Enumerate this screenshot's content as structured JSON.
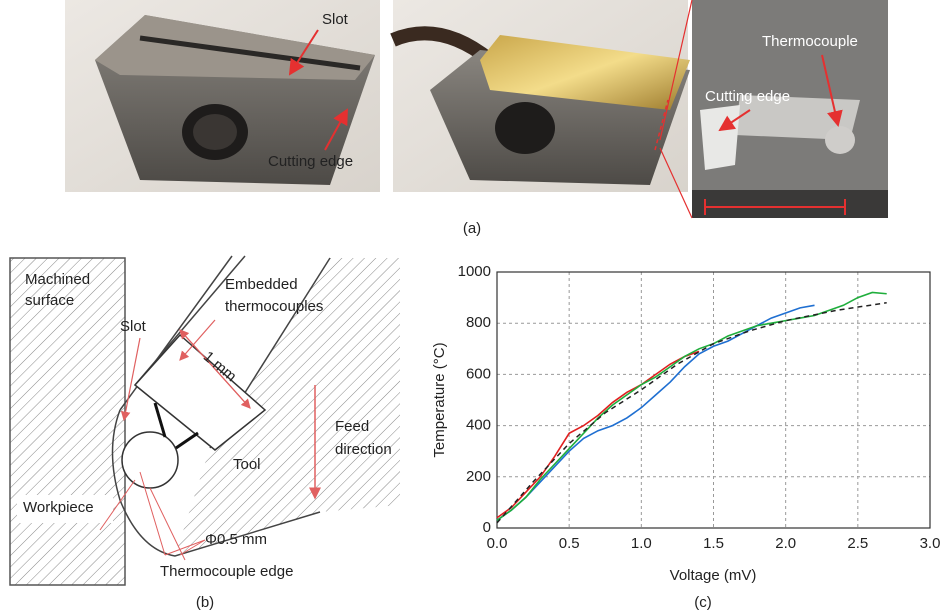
{
  "figure": {
    "panel_labels": [
      "(a)",
      "(b)",
      "(c)"
    ],
    "photo_annotations": [
      "Slot",
      "Cutting edge",
      "Thermocouple",
      "Cutting edge"
    ],
    "diagram_labels": {
      "machined_surface": [
        "Machined",
        "surface"
      ],
      "slot": "Slot",
      "embedded": [
        "Embedded",
        "thermocouples"
      ],
      "length": "1 mm",
      "feed": [
        "Feed",
        "direction"
      ],
      "tool": "Tool",
      "workpiece": "Workpiece",
      "diameter": "Φ0.5 mm",
      "tc_edge": "Thermocouple edge"
    }
  },
  "chart_data": {
    "type": "line",
    "x_label": "Voltage (mV)",
    "y_label": "Temperature (°C)",
    "xlim": [
      0,
      3
    ],
    "ylim": [
      0,
      1000
    ],
    "xticks": [
      {
        "value": 0,
        "label": "0.0"
      },
      {
        "value": 0.5,
        "label": "0.5"
      },
      {
        "value": 1,
        "label": "1.0"
      },
      {
        "value": 1.5,
        "label": "1.5"
      },
      {
        "value": 2,
        "label": "2.0"
      },
      {
        "value": 2.5,
        "label": "2.5"
      },
      {
        "value": 3,
        "label": "3.0"
      }
    ],
    "yticks": [
      0,
      200,
      400,
      600,
      800,
      1000
    ],
    "grid": true,
    "series": [
      {
        "color": "#1f6fd1",
        "dash": false,
        "x": [
          0,
          0.1,
          0.2,
          0.3,
          0.4,
          0.5,
          0.6,
          0.7,
          0.8,
          0.9,
          1.0,
          1.1,
          1.2,
          1.3,
          1.4,
          1.5,
          1.6,
          1.7,
          1.8,
          1.9,
          2.0,
          2.1,
          2.2
        ],
        "values": [
          30,
          70,
          120,
          180,
          240,
          300,
          350,
          380,
          400,
          430,
          470,
          520,
          570,
          630,
          680,
          710,
          730,
          760,
          790,
          820,
          840,
          860,
          870
        ]
      },
      {
        "color": "#e02020",
        "dash": false,
        "x": [
          0,
          0.1,
          0.2,
          0.3,
          0.4,
          0.5,
          0.6,
          0.7,
          0.8,
          0.9,
          1.0,
          1.1,
          1.2,
          1.3,
          1.4
        ],
        "values": [
          40,
          80,
          140,
          200,
          280,
          370,
          400,
          440,
          490,
          530,
          560,
          600,
          640,
          670,
          690
        ]
      },
      {
        "color": "#1fae3c",
        "dash": false,
        "x": [
          0,
          0.1,
          0.2,
          0.3,
          0.4,
          0.5,
          0.6,
          0.7,
          0.8,
          0.9,
          1.0,
          1.1,
          1.2,
          1.3,
          1.4,
          1.5,
          1.6,
          1.7,
          1.8,
          1.9,
          2.0,
          2.1,
          2.2,
          2.3,
          2.4,
          2.5,
          2.6,
          2.7
        ],
        "values": [
          30,
          70,
          120,
          190,
          250,
          310,
          370,
          430,
          480,
          520,
          560,
          590,
          630,
          670,
          700,
          720,
          750,
          770,
          790,
          800,
          810,
          820,
          830,
          850,
          870,
          900,
          920,
          915
        ]
      },
      {
        "color": "#222222",
        "dash": true,
        "x": [
          0,
          0.25,
          0.5,
          0.75,
          1.0,
          1.25,
          1.5,
          1.75,
          2.0,
          2.35,
          2.7
        ],
        "values": [
          20,
          180,
          330,
          450,
          540,
          640,
          720,
          770,
          810,
          850,
          880
        ]
      }
    ]
  }
}
